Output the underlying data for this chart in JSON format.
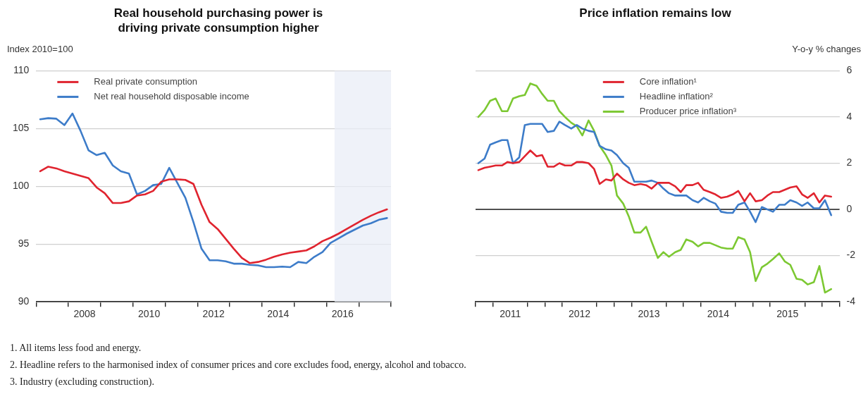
{
  "chart_data": [
    {
      "type": "line",
      "title": "Real household purchasing power is driving private consumption higher",
      "ylabel": "Index 2010=100",
      "x": [
        2007.125,
        2007.375,
        2007.625,
        2007.875,
        2008.125,
        2008.375,
        2008.625,
        2008.875,
        2009.125,
        2009.375,
        2009.625,
        2009.875,
        2010.125,
        2010.375,
        2010.625,
        2010.875,
        2011.125,
        2011.375,
        2011.625,
        2011.875,
        2012.125,
        2012.375,
        2012.625,
        2012.875,
        2013.125,
        2013.375,
        2013.625,
        2013.875,
        2014.125,
        2014.375,
        2014.625,
        2014.875,
        2015.125,
        2015.375,
        2015.625,
        2015.875,
        2016.125,
        2016.375,
        2016.625,
        2016.875,
        2017.125,
        2017.375,
        2017.625,
        2017.875
      ],
      "series": [
        {
          "name": "Real private consumption",
          "color": "#e0242f",
          "values": [
            101.3,
            101.7,
            101.55,
            101.3,
            101.1,
            100.9,
            100.7,
            99.9,
            99.4,
            98.55,
            98.55,
            98.7,
            99.2,
            99.3,
            99.6,
            100.4,
            100.6,
            100.6,
            100.55,
            100.2,
            98.4,
            96.9,
            96.3,
            95.45,
            94.6,
            93.8,
            93.35,
            93.45,
            93.65,
            93.9,
            94.1,
            94.25,
            94.35,
            94.45,
            94.8,
            95.25,
            95.55,
            95.9,
            96.3,
            96.7,
            97.1,
            97.45,
            97.75,
            98.0
          ]
        },
        {
          "name": "Net real household disposable income",
          "color": "#3d7cc9",
          "values": [
            105.8,
            105.9,
            105.85,
            105.3,
            106.3,
            104.8,
            103.1,
            102.7,
            102.9,
            101.8,
            101.3,
            101.1,
            99.3,
            99.6,
            100.1,
            100.2,
            101.6,
            100.3,
            99.0,
            96.9,
            94.6,
            93.6,
            93.6,
            93.5,
            93.3,
            93.3,
            93.2,
            93.15,
            93.0,
            93.0,
            93.05,
            93.0,
            93.45,
            93.35,
            93.9,
            94.3,
            95.1,
            95.5,
            95.9,
            96.25,
            96.6,
            96.8,
            97.1,
            97.25
          ]
        }
      ],
      "xlim": [
        2007,
        2018
      ],
      "xticks": [
        {
          "value": 2007,
          "label": null
        },
        {
          "value": 2008,
          "label": null
        },
        {
          "value": 2008.5,
          "label": "2008"
        },
        {
          "value": 2009,
          "label": null
        },
        {
          "value": 2010,
          "label": null
        },
        {
          "value": 2010.5,
          "label": "2010"
        },
        {
          "value": 2011,
          "label": null
        },
        {
          "value": 2012,
          "label": null
        },
        {
          "value": 2012.5,
          "label": "2012"
        },
        {
          "value": 2013,
          "label": null
        },
        {
          "value": 2014,
          "label": null
        },
        {
          "value": 2014.5,
          "label": "2014"
        },
        {
          "value": 2015,
          "label": null
        },
        {
          "value": 2016,
          "label": null
        },
        {
          "value": 2016.5,
          "label": "2016"
        },
        {
          "value": 2017,
          "label": null
        },
        {
          "value": 2018,
          "label": null
        }
      ],
      "ylim": [
        90,
        110
      ],
      "yticks": [
        90,
        95,
        100,
        105,
        110
      ],
      "bands": [
        {
          "axis": "x",
          "from": 2016.25,
          "to": 2018,
          "label": null,
          "color": "#e9edf7"
        }
      ],
      "grid": "y",
      "legend": "top left"
    },
    {
      "type": "line",
      "title": "Price inflation remains low",
      "ylabel": "Y-o-y % changes",
      "x": [
        2011.04,
        2011.13,
        2011.21,
        2011.29,
        2011.38,
        2011.46,
        2011.54,
        2011.63,
        2011.71,
        2011.79,
        2011.88,
        2011.96,
        2012.04,
        2012.13,
        2012.21,
        2012.29,
        2012.38,
        2012.46,
        2012.54,
        2012.63,
        2012.71,
        2012.79,
        2012.88,
        2012.96,
        2013.04,
        2013.13,
        2013.21,
        2013.29,
        2013.38,
        2013.46,
        2013.54,
        2013.63,
        2013.71,
        2013.79,
        2013.88,
        2013.96,
        2014.04,
        2014.13,
        2014.21,
        2014.29,
        2014.38,
        2014.46,
        2014.54,
        2014.63,
        2014.71,
        2014.79,
        2014.88,
        2014.96,
        2015.04,
        2015.13,
        2015.21,
        2015.29,
        2015.38,
        2015.46,
        2015.54,
        2015.63,
        2015.71,
        2015.79,
        2015.88,
        2015.96,
        2016.04,
        2016.13
      ],
      "series": [
        {
          "name": "Core inflation¹",
          "color": "#e0242f",
          "values": [
            1.7,
            1.8,
            1.85,
            1.9,
            1.9,
            2.05,
            2.0,
            2.05,
            2.3,
            2.55,
            2.3,
            2.35,
            1.85,
            1.85,
            2.0,
            1.9,
            1.9,
            2.05,
            2.05,
            2.0,
            1.75,
            1.1,
            1.3,
            1.25,
            1.55,
            1.3,
            1.15,
            1.05,
            1.1,
            1.05,
            0.9,
            1.15,
            1.15,
            1.15,
            1.0,
            0.75,
            1.05,
            1.05,
            1.15,
            0.85,
            0.75,
            0.65,
            0.5,
            0.55,
            0.65,
            0.8,
            0.35,
            0.7,
            0.35,
            0.4,
            0.6,
            0.75,
            0.75,
            0.85,
            0.95,
            1.0,
            0.65,
            0.5,
            0.7,
            0.3,
            0.6,
            0.55
          ]
        },
        {
          "name": "Headline inflation²",
          "color": "#3d7cc9",
          "values": [
            2.0,
            2.2,
            2.8,
            2.9,
            3.0,
            3.0,
            2.0,
            2.25,
            3.65,
            3.7,
            3.7,
            3.7,
            3.35,
            3.4,
            3.8,
            3.65,
            3.5,
            3.65,
            3.5,
            3.4,
            3.35,
            2.75,
            2.6,
            2.55,
            2.35,
            2.0,
            1.8,
            1.2,
            1.2,
            1.2,
            1.25,
            1.15,
            0.9,
            0.7,
            0.6,
            0.6,
            0.6,
            0.4,
            0.3,
            0.5,
            0.35,
            0.25,
            -0.1,
            -0.15,
            -0.15,
            0.2,
            0.3,
            -0.1,
            -0.55,
            0.1,
            0.0,
            -0.1,
            0.2,
            0.2,
            0.4,
            0.3,
            0.15,
            0.3,
            0.05,
            0.05,
            0.4,
            -0.25
          ]
        },
        {
          "name": "Producer price inflation³",
          "color": "#7cc832",
          "values": [
            4.0,
            4.3,
            4.7,
            4.8,
            4.25,
            4.25,
            4.8,
            4.9,
            4.95,
            5.45,
            5.35,
            5.0,
            4.7,
            4.7,
            4.25,
            4.0,
            3.75,
            3.6,
            3.2,
            3.85,
            3.4,
            2.75,
            2.35,
            1.9,
            0.6,
            0.25,
            -0.3,
            -1.0,
            -1.0,
            -0.75,
            -1.4,
            -2.1,
            -1.85,
            -2.05,
            -1.85,
            -1.75,
            -1.3,
            -1.4,
            -1.6,
            -1.45,
            -1.45,
            -1.55,
            -1.65,
            -1.7,
            -1.7,
            -1.2,
            -1.3,
            -1.85,
            -3.1,
            -2.5,
            -2.35,
            -2.15,
            -1.9,
            -2.25,
            -2.4,
            -3.0,
            -3.05,
            -3.25,
            -3.15,
            -2.45,
            -3.6,
            -3.45
          ]
        }
      ],
      "xlim": [
        2011,
        2016.25
      ],
      "xticks": [
        {
          "value": 2011,
          "label": null
        },
        {
          "value": 2011.25,
          "label": null
        },
        {
          "value": 2011.5,
          "label": "2011"
        },
        {
          "value": 2011.75,
          "label": null
        },
        {
          "value": 2012,
          "label": null
        },
        {
          "value": 2012.25,
          "label": null
        },
        {
          "value": 2012.5,
          "label": "2012"
        },
        {
          "value": 2012.75,
          "label": null
        },
        {
          "value": 2013,
          "label": null
        },
        {
          "value": 2013.25,
          "label": null
        },
        {
          "value": 2013.5,
          "label": "2013"
        },
        {
          "value": 2013.75,
          "label": null
        },
        {
          "value": 2014,
          "label": null
        },
        {
          "value": 2014.25,
          "label": null
        },
        {
          "value": 2014.5,
          "label": "2014"
        },
        {
          "value": 2014.75,
          "label": null
        },
        {
          "value": 2015,
          "label": null
        },
        {
          "value": 2015.25,
          "label": null
        },
        {
          "value": 2015.5,
          "label": "2015"
        },
        {
          "value": 2015.75,
          "label": null
        },
        {
          "value": 2016,
          "label": null
        },
        {
          "value": 2016.25,
          "label": null
        }
      ],
      "ylim": [
        -4,
        6
      ],
      "yticks": [
        -4,
        -2,
        0,
        2,
        4,
        6
      ],
      "ref_lines": [
        {
          "axis": "y",
          "value": 0,
          "label": null,
          "color": "#000000"
        }
      ],
      "grid": "y",
      "legend": "top",
      "annotations": [
        "1. All items less food and energy.",
        "2. Headline refers to the harmonised index of consumer prices and core excludes food, energy, alcohol and tobacco.",
        "3. Industry (excluding construction)."
      ]
    }
  ]
}
